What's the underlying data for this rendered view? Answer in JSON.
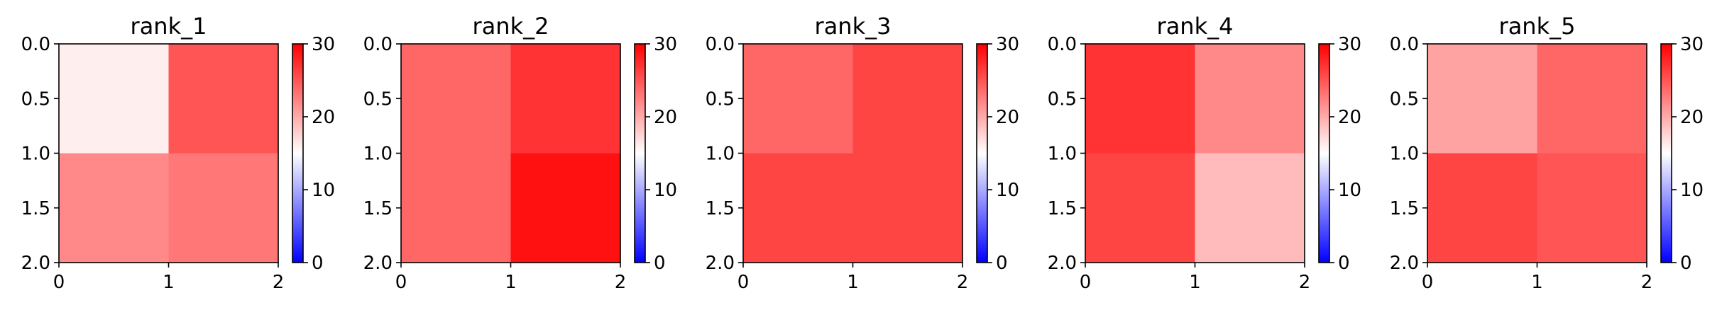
{
  "chart_data": [
    {
      "type": "heatmap",
      "title": "rank_1",
      "x_ticks": [
        "0",
        "1",
        "2"
      ],
      "y_ticks": [
        "0.0",
        "0.5",
        "1.0",
        "1.5",
        "2.0"
      ],
      "xlim": [
        0,
        2
      ],
      "ylim": [
        2,
        0
      ],
      "colormap": "bwr",
      "vmin": 0,
      "vmax": 30,
      "colorbar_ticks": [
        "0",
        "10",
        "20",
        "30"
      ],
      "values": [
        [
          16,
          25
        ],
        [
          22,
          23
        ]
      ]
    },
    {
      "type": "heatmap",
      "title": "rank_2",
      "x_ticks": [
        "0",
        "1",
        "2"
      ],
      "y_ticks": [
        "0.0",
        "0.5",
        "1.0",
        "1.5",
        "2.0"
      ],
      "xlim": [
        0,
        2
      ],
      "ylim": [
        2,
        0
      ],
      "colormap": "bwr",
      "vmin": 0,
      "vmax": 30,
      "colorbar_ticks": [
        "0",
        "10",
        "20",
        "30"
      ],
      "values": [
        [
          24,
          27
        ],
        [
          24,
          29
        ]
      ]
    },
    {
      "type": "heatmap",
      "title": "rank_3",
      "x_ticks": [
        "0",
        "1",
        "2"
      ],
      "y_ticks": [
        "0.0",
        "0.5",
        "1.0",
        "1.5",
        "2.0"
      ],
      "xlim": [
        0,
        2
      ],
      "ylim": [
        2,
        0
      ],
      "colormap": "bwr",
      "vmin": 0,
      "vmax": 30,
      "colorbar_ticks": [
        "0",
        "10",
        "20",
        "30"
      ],
      "values": [
        [
          24,
          26
        ],
        [
          26,
          26
        ]
      ]
    },
    {
      "type": "heatmap",
      "title": "rank_4",
      "x_ticks": [
        "0",
        "1",
        "2"
      ],
      "y_ticks": [
        "0.0",
        "0.5",
        "1.0",
        "1.5",
        "2.0"
      ],
      "xlim": [
        0,
        2
      ],
      "ylim": [
        2,
        0
      ],
      "colormap": "bwr",
      "vmin": 0,
      "vmax": 30,
      "colorbar_ticks": [
        "0",
        "10",
        "20",
        "30"
      ],
      "values": [
        [
          27,
          22
        ],
        [
          26,
          19
        ]
      ]
    },
    {
      "type": "heatmap",
      "title": "rank_5",
      "x_ticks": [
        "0",
        "1",
        "2"
      ],
      "y_ticks": [
        "0.0",
        "0.5",
        "1.0",
        "1.5",
        "2.0"
      ],
      "xlim": [
        0,
        2
      ],
      "ylim": [
        2,
        0
      ],
      "colormap": "bwr",
      "vmin": 0,
      "vmax": 30,
      "colorbar_ticks": [
        "0",
        "10",
        "20",
        "30"
      ],
      "values": [
        [
          20.5,
          24
        ],
        [
          26,
          25
        ]
      ]
    }
  ]
}
